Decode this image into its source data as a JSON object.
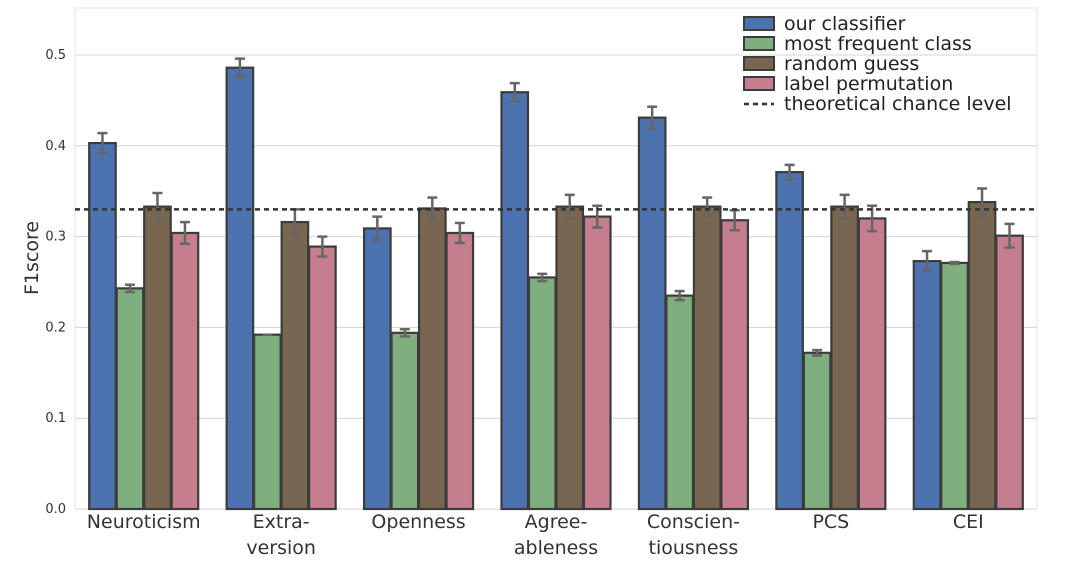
{
  "chart_data": {
    "type": "bar",
    "ylabel": "F1score",
    "xlabel": "",
    "ylim": [
      0,
      0.55
    ],
    "yticks": [
      "0.0",
      "0.1",
      "0.2",
      "0.3",
      "0.4",
      "0.5"
    ],
    "grid": true,
    "legend_position": "top-right",
    "categories": [
      [
        "Neuroticism"
      ],
      [
        "Extra-",
        "version"
      ],
      [
        "Openness"
      ],
      [
        "Agree-",
        "ableness"
      ],
      [
        "Conscien-",
        "tiousness"
      ],
      [
        "PCS"
      ],
      [
        "CEI"
      ]
    ],
    "series": [
      {
        "name": "our classifier",
        "color": "#4c72b0",
        "values": [
          0.403,
          0.486,
          0.309,
          0.459,
          0.431,
          0.371,
          0.273
        ],
        "errors": [
          0.011,
          0.01,
          0.013,
          0.01,
          0.012,
          0.008,
          0.011
        ]
      },
      {
        "name": "most frequent class",
        "color": "#7fae7f",
        "values": [
          0.243,
          0.192,
          0.194,
          0.255,
          0.235,
          0.172,
          0.271
        ],
        "errors": [
          0.004,
          0.0,
          0.004,
          0.004,
          0.005,
          0.003,
          0.001
        ]
      },
      {
        "name": "random guess",
        "color": "#786650",
        "values": [
          0.333,
          0.316,
          0.331,
          0.333,
          0.333,
          0.333,
          0.338
        ],
        "errors": [
          0.015,
          0.014,
          0.012,
          0.013,
          0.01,
          0.013,
          0.015
        ]
      },
      {
        "name": "label permutation",
        "color": "#c47e8e",
        "values": [
          0.304,
          0.289,
          0.304,
          0.322,
          0.318,
          0.32,
          0.301
        ],
        "errors": [
          0.012,
          0.011,
          0.011,
          0.012,
          0.011,
          0.014,
          0.013
        ]
      }
    ],
    "reference_line": {
      "name": "theoretical chance level",
      "value": 0.33,
      "style": "dashed"
    }
  }
}
